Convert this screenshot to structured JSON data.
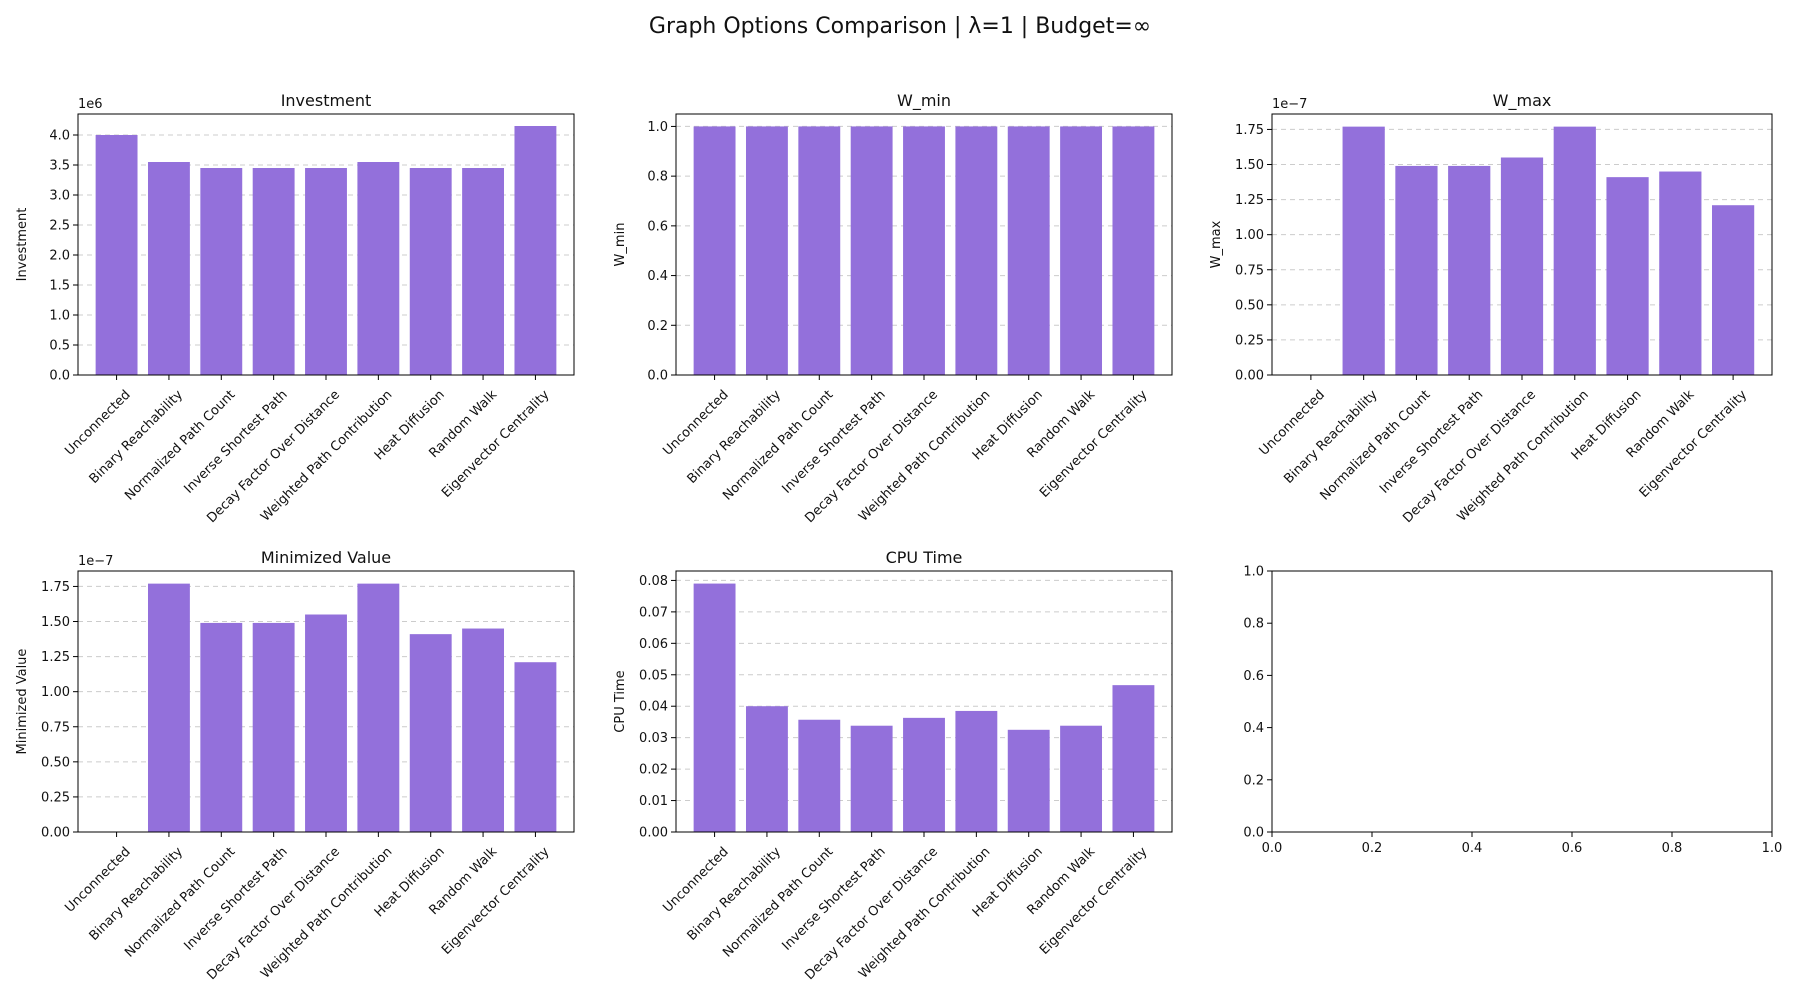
{
  "figure_title": "Graph Options Comparison | λ=1 | Budget=∞",
  "colors": {
    "bar": "#9370DB",
    "grid": "#cccccc",
    "axis": "#000000"
  },
  "chart_data": [
    {
      "type": "bar",
      "title": "Investment",
      "ylabel": "Investment",
      "scale_label": "1e6",
      "categories": [
        "Unconnected",
        "Binary Reachability",
        "Normalized Path Count",
        "Inverse Shortest Path",
        "Decay Factor Over Distance",
        "Weighted Path Contribution",
        "Heat Diffusion",
        "Random Walk",
        "Eigenvector Centrality"
      ],
      "values": [
        4.0,
        3.55,
        3.45,
        3.45,
        3.45,
        3.55,
        3.45,
        3.45,
        4.15
      ],
      "yticks": [
        "0.0",
        "0.5",
        "1.0",
        "1.5",
        "2.0",
        "2.5",
        "3.0",
        "3.5",
        "4.0"
      ],
      "ylim": [
        0,
        4.35
      ],
      "grid": true
    },
    {
      "type": "bar",
      "title": "W_min",
      "ylabel": "W_min",
      "scale_label": "",
      "categories": [
        "Unconnected",
        "Binary Reachability",
        "Normalized Path Count",
        "Inverse Shortest Path",
        "Decay Factor Over Distance",
        "Weighted Path Contribution",
        "Heat Diffusion",
        "Random Walk",
        "Eigenvector Centrality"
      ],
      "values": [
        1.0,
        1.0,
        1.0,
        1.0,
        1.0,
        1.0,
        1.0,
        1.0,
        1.0
      ],
      "yticks": [
        "0.0",
        "0.2",
        "0.4",
        "0.6",
        "0.8",
        "1.0"
      ],
      "ylim": [
        0,
        1.05
      ],
      "grid": true
    },
    {
      "type": "bar",
      "title": "W_max",
      "ylabel": "W_max",
      "scale_label": "1e−7",
      "categories": [
        "Unconnected",
        "Binary Reachability",
        "Normalized Path Count",
        "Inverse Shortest Path",
        "Decay Factor Over Distance",
        "Weighted Path Contribution",
        "Heat Diffusion",
        "Random Walk",
        "Eigenvector Centrality"
      ],
      "values": [
        0,
        1.77,
        1.49,
        1.49,
        1.55,
        1.77,
        1.41,
        1.45,
        1.21
      ],
      "yticks": [
        "0.00",
        "0.25",
        "0.50",
        "0.75",
        "1.00",
        "1.25",
        "1.50",
        "1.75"
      ],
      "ylim": [
        0,
        1.86
      ],
      "grid": true
    },
    {
      "type": "bar",
      "title": "Minimized Value",
      "ylabel": "Minimized Value",
      "scale_label": "1e−7",
      "categories": [
        "Unconnected",
        "Binary Reachability",
        "Normalized Path Count",
        "Inverse Shortest Path",
        "Decay Factor Over Distance",
        "Weighted Path Contribution",
        "Heat Diffusion",
        "Random Walk",
        "Eigenvector Centrality"
      ],
      "values": [
        0,
        1.77,
        1.49,
        1.49,
        1.55,
        1.77,
        1.41,
        1.45,
        1.21
      ],
      "yticks": [
        "0.00",
        "0.25",
        "0.50",
        "0.75",
        "1.00",
        "1.25",
        "1.50",
        "1.75"
      ],
      "ylim": [
        0,
        1.86
      ],
      "grid": true
    },
    {
      "type": "bar",
      "title": "CPU Time",
      "ylabel": "CPU Time",
      "scale_label": "",
      "categories": [
        "Unconnected",
        "Binary Reachability",
        "Normalized Path Count",
        "Inverse Shortest Path",
        "Decay Factor Over Distance",
        "Weighted Path Contribution",
        "Heat Diffusion",
        "Random Walk",
        "Eigenvector Centrality"
      ],
      "values": [
        0.079,
        0.04,
        0.0357,
        0.0338,
        0.0363,
        0.0385,
        0.0325,
        0.0338,
        0.0467
      ],
      "yticks": [
        "0.00",
        "0.01",
        "0.02",
        "0.03",
        "0.04",
        "0.05",
        "0.06",
        "0.07",
        "0.08"
      ],
      "ylim": [
        0,
        0.083
      ],
      "grid": true
    },
    {
      "type": "bar",
      "title": "",
      "ylabel": "",
      "scale_label": "",
      "categories": [],
      "values": [],
      "xticks": [
        "0.0",
        "0.2",
        "0.4",
        "0.6",
        "0.8",
        "1.0"
      ],
      "yticks": [
        "0.0",
        "0.2",
        "0.4",
        "0.6",
        "0.8",
        "1.0"
      ],
      "xlim": [
        0,
        1
      ],
      "ylim": [
        0,
        1
      ],
      "grid": false
    }
  ]
}
